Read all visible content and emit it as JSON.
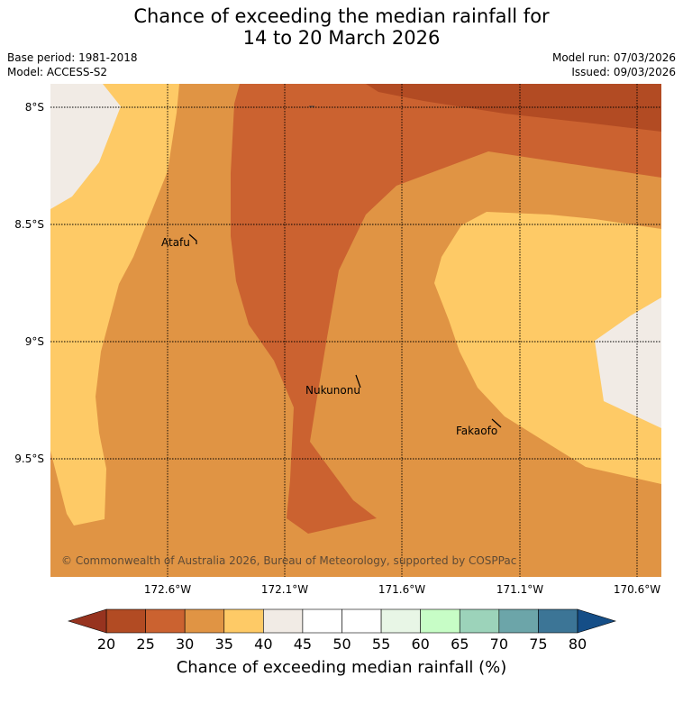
{
  "title": {
    "line1": "Chance of exceeding the median rainfall for",
    "line2": "14 to 20 March 2026"
  },
  "meta": {
    "base_period": "Base period: 1981-2018",
    "model": "Model: ACCESS-S2",
    "model_run": "Model run: 07/03/2026",
    "issued": "Issued: 09/03/2026"
  },
  "map": {
    "lat_labels": [
      "8°S",
      "8.5°S",
      "9°S",
      "9.5°S"
    ],
    "lon_labels": [
      "172.6°W",
      "172.1°W",
      "171.6°W",
      "171.1°W",
      "170.6°W"
    ],
    "places": [
      "Atafu",
      "Nukunonu",
      "Fakaofo"
    ],
    "copyright": "© Commonwealth of Australia 2026, Bureau of Meteorology, supported by COSPPac",
    "category_colors": {
      "20-25": "#b24b23",
      "25-30": "#cb6230",
      "30-35": "#e09444",
      "35-40": "#feca66",
      "40-45": "#f1ebe5"
    }
  },
  "colorbar": {
    "ticks": [
      "20",
      "25",
      "30",
      "35",
      "40",
      "45",
      "50",
      "55",
      "60",
      "65",
      "70",
      "75",
      "80"
    ],
    "colors": [
      "#b24b23",
      "#cb6230",
      "#e09444",
      "#feca66",
      "#f1ebe5",
      "#ffffff",
      "#ffffff",
      "#e8f6e6",
      "#c7fdc6",
      "#9cd3ba",
      "#6ca5a9",
      "#3c7596"
    ],
    "under_color": "#97331f",
    "over_color": "#154e87",
    "label": "Chance of exceeding median rainfall (%)"
  }
}
